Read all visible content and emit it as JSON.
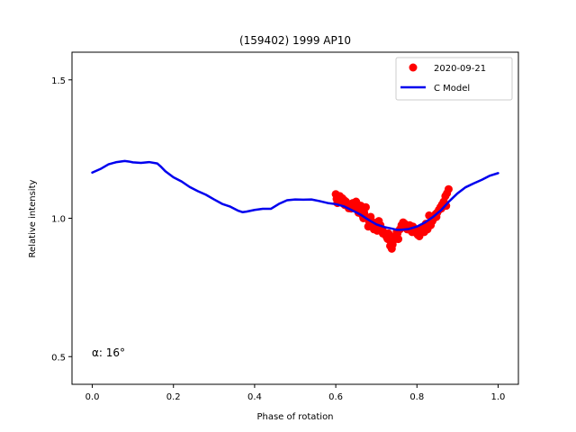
{
  "chart_data": {
    "type": "scatter",
    "title": "(159402) 1999 AP10",
    "xlabel": "Phase of rotation",
    "ylabel": "Relative intensity",
    "xlim": [
      -0.05,
      1.05
    ],
    "ylim": [
      0.4,
      1.6
    ],
    "xticks": [
      0.0,
      0.2,
      0.4,
      0.6,
      0.8,
      1.0
    ],
    "xtick_labels": [
      "0.0",
      "0.2",
      "0.4",
      "0.6",
      "0.8",
      "1.0"
    ],
    "yticks": [
      0.5,
      1.0,
      1.5
    ],
    "ytick_labels": [
      "0.5",
      "1.0",
      "1.5"
    ],
    "grid": false,
    "legend_position": "top-right",
    "annotation": "α: 16°",
    "series": [
      {
        "name": "2020-09-21",
        "kind": "scatter",
        "color": "#ff0000",
        "x": [
          0.6,
          0.604,
          0.61,
          0.616,
          0.62,
          0.625,
          0.63,
          0.634,
          0.638,
          0.642,
          0.646,
          0.65,
          0.654,
          0.658,
          0.662,
          0.666,
          0.67,
          0.674,
          0.678,
          0.682,
          0.686,
          0.69,
          0.694,
          0.698,
          0.702,
          0.706,
          0.71,
          0.714,
          0.718,
          0.722,
          0.726,
          0.73,
          0.734,
          0.738,
          0.742,
          0.746,
          0.75,
          0.754,
          0.758,
          0.762,
          0.766,
          0.77,
          0.774,
          0.778,
          0.782,
          0.786,
          0.79,
          0.794,
          0.798,
          0.802,
          0.806,
          0.81,
          0.814,
          0.818,
          0.822,
          0.826,
          0.83,
          0.834,
          0.838,
          0.842,
          0.846,
          0.85,
          0.854,
          0.858,
          0.862,
          0.866,
          0.87,
          0.874,
          0.878,
          0.602,
          0.612,
          0.622,
          0.632,
          0.644,
          0.656,
          0.668,
          0.68,
          0.692,
          0.704,
          0.716,
          0.728,
          0.74,
          0.752,
          0.764,
          0.776,
          0.788,
          0.8,
          0.812,
          0.824,
          0.836,
          0.848,
          0.86,
          0.872
        ],
        "y": [
          1.087,
          1.055,
          1.08,
          1.072,
          1.066,
          1.06,
          1.05,
          1.04,
          1.035,
          1.055,
          1.045,
          1.06,
          1.05,
          1.03,
          1.045,
          1.01,
          1.02,
          1.04,
          1.0,
          0.99,
          1.005,
          0.98,
          0.96,
          0.975,
          0.955,
          0.99,
          0.975,
          0.96,
          0.95,
          0.94,
          0.93,
          0.945,
          0.9,
          0.89,
          0.92,
          0.935,
          0.95,
          0.925,
          0.96,
          0.975,
          0.985,
          0.98,
          0.97,
          0.96,
          0.975,
          0.955,
          0.97,
          0.95,
          0.96,
          0.94,
          0.935,
          0.955,
          0.965,
          0.95,
          0.98,
          0.96,
          1.01,
          0.975,
          0.99,
          1.0,
          1.015,
          1.02,
          1.03,
          1.04,
          1.05,
          1.06,
          1.08,
          1.09,
          1.105,
          1.07,
          1.062,
          1.048,
          1.036,
          1.04,
          1.02,
          1.0,
          0.97,
          0.985,
          0.965,
          0.945,
          0.925,
          0.905,
          0.945,
          0.968,
          0.96,
          0.95,
          0.945,
          0.958,
          0.97,
          0.99,
          1.005,
          1.035,
          1.045
        ]
      },
      {
        "name": "C Model",
        "kind": "line",
        "color": "#0000ee",
        "x": [
          0.0,
          0.02,
          0.04,
          0.06,
          0.08,
          0.09,
          0.1,
          0.12,
          0.14,
          0.16,
          0.17,
          0.18,
          0.2,
          0.22,
          0.24,
          0.26,
          0.28,
          0.3,
          0.32,
          0.34,
          0.36,
          0.37,
          0.38,
          0.4,
          0.42,
          0.44,
          0.46,
          0.48,
          0.5,
          0.52,
          0.54,
          0.56,
          0.58,
          0.6,
          0.62,
          0.64,
          0.66,
          0.68,
          0.7,
          0.72,
          0.74,
          0.75,
          0.76,
          0.78,
          0.8,
          0.82,
          0.84,
          0.86,
          0.88,
          0.9,
          0.92,
          0.94,
          0.96,
          0.98,
          1.0
        ],
        "y": [
          1.165,
          1.178,
          1.195,
          1.203,
          1.207,
          1.205,
          1.202,
          1.2,
          1.203,
          1.198,
          1.185,
          1.17,
          1.148,
          1.133,
          1.113,
          1.098,
          1.085,
          1.068,
          1.052,
          1.042,
          1.027,
          1.022,
          1.024,
          1.03,
          1.034,
          1.034,
          1.052,
          1.065,
          1.068,
          1.067,
          1.068,
          1.062,
          1.055,
          1.051,
          1.043,
          1.029,
          1.014,
          0.995,
          0.978,
          0.968,
          0.962,
          0.958,
          0.958,
          0.961,
          0.97,
          0.985,
          1.005,
          1.03,
          1.062,
          1.09,
          1.112,
          1.126,
          1.139,
          1.154,
          1.163
        ]
      }
    ]
  }
}
